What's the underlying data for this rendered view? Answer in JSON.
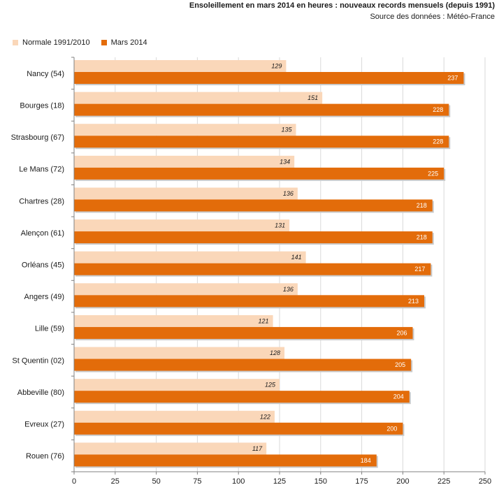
{
  "header": {
    "title": "Ensoleillement  en mars 2014 en heures : nouveaux records mensuels (depuis 1991)",
    "subtitle": "Source des données : Météo-France"
  },
  "colors": {
    "normal": "#fad7b9",
    "mars2014": "#e36c0a",
    "grid": "#d9d9d9",
    "axis": "#808080"
  },
  "chart_data": {
    "type": "bar",
    "orientation": "horizontal",
    "categories": [
      "Nancy (54)",
      "Bourges (18)",
      "Strasbourg (67)",
      "Le Mans (72)",
      "Chartres (28)",
      "Alençon (61)",
      "Orléans (45)",
      "Angers (49)",
      "Lille (59)",
      "St Quentin (02)",
      "Abbeville (80)",
      "Evreux (27)",
      "Rouen (76)"
    ],
    "series": [
      {
        "name": "Normale 1991/2010",
        "values": [
          129,
          151,
          135,
          134,
          136,
          131,
          141,
          136,
          121,
          128,
          125,
          122,
          117
        ]
      },
      {
        "name": "Mars 2014",
        "values": [
          237,
          228,
          228,
          225,
          218,
          218,
          217,
          213,
          206,
          205,
          204,
          200,
          184
        ]
      }
    ],
    "xlim": [
      0,
      250
    ],
    "xticks": [
      "0",
      "25",
      "50",
      "75",
      "100",
      "125",
      "150",
      "175",
      "200",
      "225",
      "250"
    ],
    "grid": "vertical",
    "legend_position": "top-left"
  }
}
